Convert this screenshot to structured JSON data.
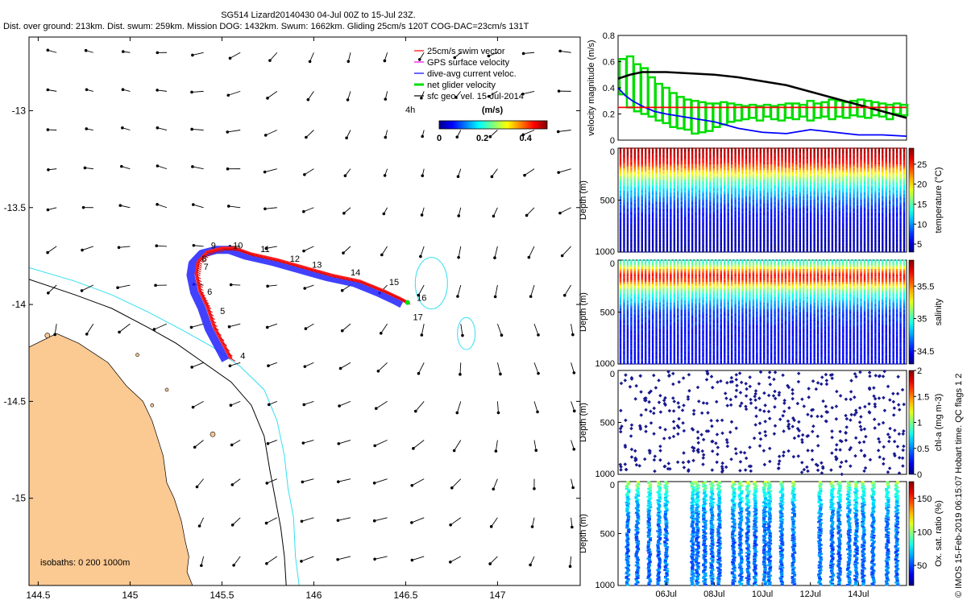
{
  "title": {
    "line1": "SG514 Lizard20140430 04-Jul 00Z to 15-Jul 23Z.",
    "line2": "Dist. over ground: 213km. Dist. swum: 259km. Mission DOG: 1432km. Swum: 1662km. Gliding 25cm/s 120T COG-DAC=23cm/s 131T"
  },
  "watermark": "© IMOS 15-Feb-2019 06:15:07 Hobart time. QC flags 1  2",
  "colors": {
    "swim": "#ff0000",
    "gps": "#ff00ff",
    "dac": "#0000ff",
    "net": "#00dd00",
    "land": "#fbc992",
    "coast200": "#33e0f0",
    "track_blue": "#2020ff",
    "track_red": "#ff2020"
  },
  "chart_data": [
    {
      "type": "scatter",
      "subtype": "map",
      "xlim": [
        144.45,
        147.45
      ],
      "ylim": [
        -15.45,
        -12.62
      ],
      "x_ticks": [
        "144.5",
        "145",
        "145.5",
        "146",
        "146.5",
        "147"
      ],
      "x_tick_values": [
        144.5,
        145,
        145.5,
        146,
        146.5,
        147
      ],
      "y_ticks": [
        "-13",
        "-13.5",
        "-14",
        "-14.5",
        "-15"
      ],
      "y_tick_values": [
        -13,
        -13.5,
        -14,
        -14.5,
        -15
      ],
      "legend": [
        "25cm/s swim vector",
        "GPS surface velocity",
        "dive-avg current veloc.",
        "net glider velocity",
        "sfc geo. vel. 15-Jul-2014"
      ],
      "legend_extra": "4h",
      "colorbar": {
        "label": "(m/s)",
        "ticks": [
          "0",
          "0.2",
          "0.4"
        ],
        "range": [
          0,
          0.5
        ],
        "colormap": "jet"
      },
      "isobath_label": "isobaths: 0   200  1000m",
      "track": [
        [
          145.55,
          -14.28
        ],
        [
          145.46,
          -14.12
        ],
        [
          145.42,
          -14.01
        ],
        [
          145.38,
          -13.93
        ],
        [
          145.36,
          -13.84
        ],
        [
          145.37,
          -13.78
        ],
        [
          145.42,
          -13.73
        ],
        [
          145.5,
          -13.71
        ],
        [
          145.57,
          -13.71
        ],
        [
          145.66,
          -13.74
        ],
        [
          145.8,
          -13.77
        ],
        [
          145.95,
          -13.81
        ],
        [
          146.1,
          -13.85
        ],
        [
          146.25,
          -13.88
        ],
        [
          146.38,
          -13.93
        ],
        [
          146.47,
          -13.97
        ],
        [
          146.51,
          -13.99
        ]
      ],
      "day_labels": [
        {
          "text": "4",
          "lon": 145.6,
          "lat": -14.28
        },
        {
          "text": "5",
          "lon": 145.49,
          "lat": -14.05
        },
        {
          "text": "6",
          "lon": 145.42,
          "lat": -13.95
        },
        {
          "text": "7",
          "lon": 145.4,
          "lat": -13.82
        },
        {
          "text": "8",
          "lon": 145.39,
          "lat": -13.78
        },
        {
          "text": "9",
          "lon": 145.44,
          "lat": -13.71
        },
        {
          "text": "10",
          "lon": 145.56,
          "lat": -13.71
        },
        {
          "text": "11",
          "lon": 145.71,
          "lat": -13.73
        },
        {
          "text": "12",
          "lon": 145.87,
          "lat": -13.78
        },
        {
          "text": "13",
          "lon": 145.99,
          "lat": -13.81
        },
        {
          "text": "14",
          "lon": 146.2,
          "lat": -13.85
        },
        {
          "text": "15",
          "lon": 146.41,
          "lat": -13.9
        },
        {
          "text": "16",
          "lon": 146.56,
          "lat": -13.98
        },
        {
          "text": "17",
          "lon": 146.54,
          "lat": -14.08
        }
      ]
    },
    {
      "type": "line",
      "xlim": [
        4.0,
        16.0
      ],
      "ylim": [
        0,
        0.8
      ],
      "y_ticks": [
        "0",
        "0.2",
        "0.4",
        "0.6",
        "0.8"
      ],
      "ylabel": "velocity magnitude (m/s)",
      "series": [
        {
          "color": "#000000",
          "x": [
            4,
            4.5,
            5,
            6,
            7,
            8,
            9,
            10,
            11,
            12,
            13,
            14,
            15,
            16
          ],
          "values": [
            0.47,
            0.5,
            0.52,
            0.52,
            0.51,
            0.5,
            0.48,
            0.45,
            0.42,
            0.37,
            0.32,
            0.27,
            0.22,
            0.17
          ]
        },
        {
          "color": "#0000ff",
          "x": [
            4,
            4.3,
            4.6,
            5,
            5.5,
            6,
            7,
            8,
            9,
            10,
            11,
            12,
            13,
            14,
            15,
            16
          ],
          "values": [
            0.4,
            0.34,
            0.3,
            0.26,
            0.22,
            0.2,
            0.17,
            0.14,
            0.09,
            0.06,
            0.05,
            0.08,
            0.06,
            0.04,
            0.04,
            0.03
          ]
        },
        {
          "color": "#ff0000",
          "x": [
            4,
            16
          ],
          "values": [
            0.25,
            0.25
          ]
        }
      ],
      "net_glider_bars": {
        "color": "#00dd00",
        "x": [
          4.2,
          4.5,
          4.8,
          5.1,
          5.4,
          5.7,
          6.0,
          6.3,
          6.6,
          6.9,
          7.2,
          7.5,
          7.8,
          8.1,
          8.4,
          8.7,
          9.0,
          9.3,
          9.6,
          9.9,
          10.2,
          10.5,
          10.8,
          11.1,
          11.4,
          11.7,
          12.0,
          12.3,
          12.6,
          12.9,
          13.2,
          13.5,
          13.8,
          14.1,
          14.4,
          14.7,
          15.0,
          15.3,
          15.6,
          15.9
        ],
        "low": [
          0.35,
          0.25,
          0.22,
          0.2,
          0.18,
          0.15,
          0.13,
          0.1,
          0.09,
          0.08,
          0.05,
          0.06,
          0.07,
          0.1,
          0.12,
          0.14,
          0.15,
          0.16,
          0.17,
          0.15,
          0.18,
          0.16,
          0.15,
          0.17,
          0.16,
          0.18,
          0.15,
          0.17,
          0.18,
          0.16,
          0.18,
          0.17,
          0.19,
          0.18,
          0.17,
          0.19,
          0.18,
          0.16,
          0.2,
          0.19
        ],
        "high": [
          0.62,
          0.64,
          0.58,
          0.55,
          0.48,
          0.43,
          0.4,
          0.36,
          0.33,
          0.31,
          0.3,
          0.29,
          0.28,
          0.28,
          0.29,
          0.28,
          0.27,
          0.26,
          0.27,
          0.26,
          0.27,
          0.26,
          0.27,
          0.28,
          0.28,
          0.27,
          0.3,
          0.28,
          0.29,
          0.31,
          0.3,
          0.29,
          0.3,
          0.31,
          0.3,
          0.29,
          0.28,
          0.27,
          0.28,
          0.27
        ]
      }
    },
    {
      "type": "heatmap",
      "ylabel": "Depth (m)",
      "y_ticks": [
        "0",
        "500",
        "1000"
      ],
      "ylim": [
        1000,
        0
      ],
      "colorbar": {
        "label": "temperature (°C)",
        "ticks": [
          "5",
          "10",
          "15",
          "20",
          "25"
        ],
        "range": [
          3,
          29
        ]
      },
      "profile": [
        [
          0,
          28
        ],
        [
          50,
          27.5
        ],
        [
          100,
          26.5
        ],
        [
          150,
          25
        ],
        [
          200,
          22
        ],
        [
          250,
          19
        ],
        [
          300,
          16
        ],
        [
          400,
          12
        ],
        [
          500,
          9
        ],
        [
          600,
          7
        ],
        [
          700,
          6
        ],
        [
          800,
          5
        ],
        [
          1000,
          4
        ]
      ]
    },
    {
      "type": "heatmap",
      "ylabel": "Depth (m)",
      "y_ticks": [
        "0",
        "500",
        "1000"
      ],
      "ylim": [
        1000,
        0
      ],
      "colorbar": {
        "label": "salinity",
        "ticks": [
          "34.5",
          "35",
          "35.5"
        ],
        "range": [
          34.3,
          35.9
        ]
      },
      "profile": [
        [
          0,
          34.95
        ],
        [
          50,
          35.1
        ],
        [
          100,
          35.5
        ],
        [
          150,
          35.7
        ],
        [
          200,
          35.6
        ],
        [
          250,
          35.3
        ],
        [
          300,
          35.05
        ],
        [
          400,
          34.8
        ],
        [
          500,
          34.6
        ],
        [
          700,
          34.5
        ],
        [
          1000,
          34.5
        ]
      ]
    },
    {
      "type": "heatmap",
      "ylabel": "Depth (m)",
      "y_ticks": [
        "0",
        "500",
        "1000"
      ],
      "ylim": [
        1000,
        0
      ],
      "colorbar": {
        "label": "chl-a (mg m-3)",
        "ticks": [
          "0",
          "0.5",
          "1",
          "1.5",
          "2"
        ],
        "range": [
          0,
          2
        ]
      },
      "profile": [
        [
          0,
          0.05
        ],
        [
          1000,
          0.05
        ]
      ]
    },
    {
      "type": "heatmap",
      "ylabel": "Depth (m)",
      "y_ticks": [
        "0",
        "500",
        "1000"
      ],
      "ylim": [
        1000,
        0
      ],
      "x_ticks": [
        "06Jul",
        "08Jul",
        "10Jul",
        "12Jul",
        "14Jul"
      ],
      "x_tick_values": [
        6,
        8,
        10,
        12,
        14
      ],
      "xlim": [
        4.0,
        16.0
      ],
      "colorbar": {
        "label": "Ox. sat. ratio (%)",
        "ticks": [
          "50",
          "100",
          "150"
        ],
        "range": [
          20,
          175
        ]
      },
      "profile": [
        [
          0,
          105
        ],
        [
          100,
          80
        ],
        [
          300,
          62
        ],
        [
          600,
          55
        ],
        [
          1000,
          58
        ]
      ]
    }
  ]
}
